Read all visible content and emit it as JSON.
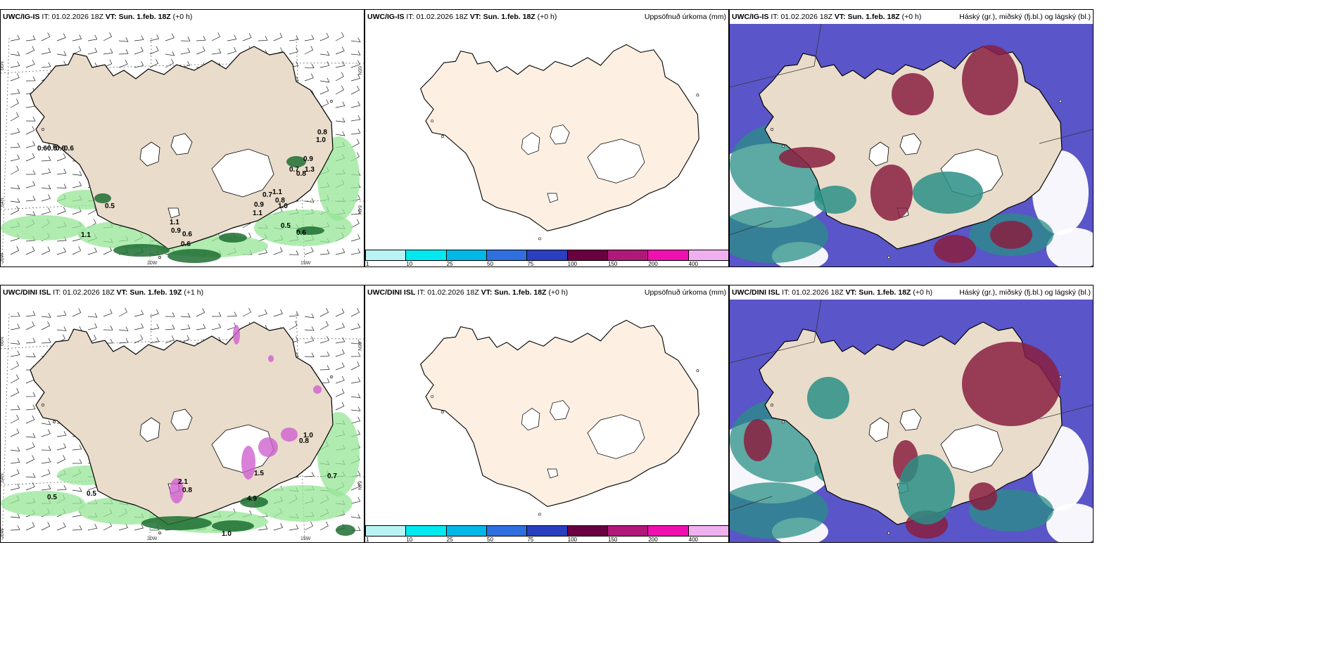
{
  "panels": [
    {
      "model": "UWC/IG-IS",
      "it_label": "IT:",
      "it": "01.02.2026 18Z",
      "vt_label": "VT:",
      "vt": "Sun. 1.feb. 18Z",
      "lead": "(+0 h)",
      "right": ""
    },
    {
      "model": "UWC/IG-IS",
      "it_label": "IT:",
      "it": "01.02.2026 18Z",
      "vt_label": "VT:",
      "vt": "Sun. 1.feb. 18Z",
      "lead": "(+0 h)",
      "right": "Uppsöfnuð úrkoma (mm)"
    },
    {
      "model": "UWC/IG-IS",
      "it_label": "IT:",
      "it": "01.02.2026 18Z",
      "vt_label": "VT:",
      "vt": "Sun. 1.feb. 18Z",
      "lead": "(+0 h)",
      "right": "Háský (gr.), miðský (fj.bl.) og lágský (bl.)"
    },
    {
      "model": "UWC/DINI ISL",
      "it_label": "IT:",
      "it": "01.02.2026 18Z",
      "vt_label": "VT:",
      "vt": "Sun. 1.feb. 19Z",
      "lead": "(+1 h)",
      "right": ""
    },
    {
      "model": "UWC/DINI ISL",
      "it_label": "IT:",
      "it": "01.02.2026 18Z",
      "vt_label": "VT:",
      "vt": "Sun. 1.feb. 18Z",
      "lead": "(+0 h)",
      "right": "Uppsöfnuð úrkoma (mm)"
    },
    {
      "model": "UWC/DINI ISL",
      "it_label": "IT:",
      "it": "01.02.2026 18Z",
      "vt_label": "VT:",
      "vt": "Sun. 1.feb. 18Z",
      "lead": "(+0 h)",
      "right": "Háský (gr.), miðský (fj.bl.) og lágský (bl.)"
    }
  ],
  "axis_labels": {
    "lat66": "66N",
    "lat64": "64N",
    "lon25": "25W",
    "lon20": "20W",
    "lon15": "15W"
  },
  "colorbar": {
    "ticks": [
      "1",
      "10",
      "25",
      "50",
      "75",
      "100",
      "150",
      "200",
      "400"
    ],
    "colors": [
      "#b8f4f4",
      "#00e8f0",
      "#00b8e8",
      "#2f6fe0",
      "#2a3fc0",
      "#6a0040",
      "#b0187a",
      "#f010b0",
      "#f0b0f0"
    ]
  },
  "colors": {
    "land": "#e9dccb",
    "land_precip": "#fdf0e2",
    "green": "#96e696",
    "darkgreen": "#1e6e32",
    "magenta": "#d060d0",
    "purple": "#5a55c8",
    "teal": "#2a8f86",
    "maroon": "#8a1e40",
    "red": "#c03c32"
  },
  "labels_top_left": [
    "0.6",
    "0.6",
    "0.6",
    "0.6",
    "0.5",
    "1.1",
    "1.1",
    "0.9",
    "0.6",
    "0.6",
    "0.8",
    "1.0",
    "0.9",
    "0.7",
    "0.8",
    "1.3",
    "1.1",
    "0.8",
    "0.9",
    "1.1",
    "0.7",
    "1.0",
    "0.5",
    "0.6"
  ],
  "labels_bottom_left": [
    "0.5",
    "0.5",
    "4.9",
    "1.0",
    "0.7",
    "2.1",
    "0.8",
    "1.5",
    "0.8",
    "1.0"
  ]
}
